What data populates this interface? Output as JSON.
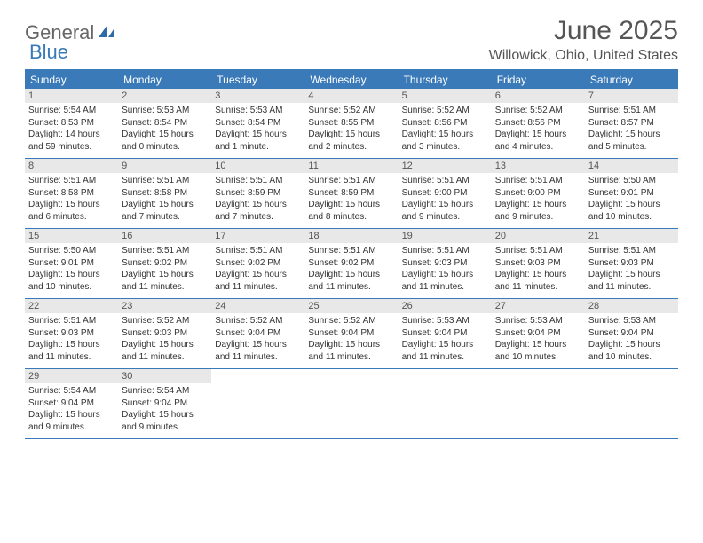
{
  "logo": {
    "text1": "General",
    "text2": "Blue"
  },
  "title": "June 2025",
  "location": "Willowick, Ohio, United States",
  "colors": {
    "accent": "#3a7ab8",
    "daynum_bg": "#e8e8e8",
    "text": "#333333"
  },
  "dayHeaders": [
    "Sunday",
    "Monday",
    "Tuesday",
    "Wednesday",
    "Thursday",
    "Friday",
    "Saturday"
  ],
  "weeks": [
    [
      {
        "n": "1",
        "sr": "Sunrise: 5:54 AM",
        "ss": "Sunset: 8:53 PM",
        "d1": "Daylight: 14 hours",
        "d2": "and 59 minutes."
      },
      {
        "n": "2",
        "sr": "Sunrise: 5:53 AM",
        "ss": "Sunset: 8:54 PM",
        "d1": "Daylight: 15 hours",
        "d2": "and 0 minutes."
      },
      {
        "n": "3",
        "sr": "Sunrise: 5:53 AM",
        "ss": "Sunset: 8:54 PM",
        "d1": "Daylight: 15 hours",
        "d2": "and 1 minute."
      },
      {
        "n": "4",
        "sr": "Sunrise: 5:52 AM",
        "ss": "Sunset: 8:55 PM",
        "d1": "Daylight: 15 hours",
        "d2": "and 2 minutes."
      },
      {
        "n": "5",
        "sr": "Sunrise: 5:52 AM",
        "ss": "Sunset: 8:56 PM",
        "d1": "Daylight: 15 hours",
        "d2": "and 3 minutes."
      },
      {
        "n": "6",
        "sr": "Sunrise: 5:52 AM",
        "ss": "Sunset: 8:56 PM",
        "d1": "Daylight: 15 hours",
        "d2": "and 4 minutes."
      },
      {
        "n": "7",
        "sr": "Sunrise: 5:51 AM",
        "ss": "Sunset: 8:57 PM",
        "d1": "Daylight: 15 hours",
        "d2": "and 5 minutes."
      }
    ],
    [
      {
        "n": "8",
        "sr": "Sunrise: 5:51 AM",
        "ss": "Sunset: 8:58 PM",
        "d1": "Daylight: 15 hours",
        "d2": "and 6 minutes."
      },
      {
        "n": "9",
        "sr": "Sunrise: 5:51 AM",
        "ss": "Sunset: 8:58 PM",
        "d1": "Daylight: 15 hours",
        "d2": "and 7 minutes."
      },
      {
        "n": "10",
        "sr": "Sunrise: 5:51 AM",
        "ss": "Sunset: 8:59 PM",
        "d1": "Daylight: 15 hours",
        "d2": "and 7 minutes."
      },
      {
        "n": "11",
        "sr": "Sunrise: 5:51 AM",
        "ss": "Sunset: 8:59 PM",
        "d1": "Daylight: 15 hours",
        "d2": "and 8 minutes."
      },
      {
        "n": "12",
        "sr": "Sunrise: 5:51 AM",
        "ss": "Sunset: 9:00 PM",
        "d1": "Daylight: 15 hours",
        "d2": "and 9 minutes."
      },
      {
        "n": "13",
        "sr": "Sunrise: 5:51 AM",
        "ss": "Sunset: 9:00 PM",
        "d1": "Daylight: 15 hours",
        "d2": "and 9 minutes."
      },
      {
        "n": "14",
        "sr": "Sunrise: 5:50 AM",
        "ss": "Sunset: 9:01 PM",
        "d1": "Daylight: 15 hours",
        "d2": "and 10 minutes."
      }
    ],
    [
      {
        "n": "15",
        "sr": "Sunrise: 5:50 AM",
        "ss": "Sunset: 9:01 PM",
        "d1": "Daylight: 15 hours",
        "d2": "and 10 minutes."
      },
      {
        "n": "16",
        "sr": "Sunrise: 5:51 AM",
        "ss": "Sunset: 9:02 PM",
        "d1": "Daylight: 15 hours",
        "d2": "and 11 minutes."
      },
      {
        "n": "17",
        "sr": "Sunrise: 5:51 AM",
        "ss": "Sunset: 9:02 PM",
        "d1": "Daylight: 15 hours",
        "d2": "and 11 minutes."
      },
      {
        "n": "18",
        "sr": "Sunrise: 5:51 AM",
        "ss": "Sunset: 9:02 PM",
        "d1": "Daylight: 15 hours",
        "d2": "and 11 minutes."
      },
      {
        "n": "19",
        "sr": "Sunrise: 5:51 AM",
        "ss": "Sunset: 9:03 PM",
        "d1": "Daylight: 15 hours",
        "d2": "and 11 minutes."
      },
      {
        "n": "20",
        "sr": "Sunrise: 5:51 AM",
        "ss": "Sunset: 9:03 PM",
        "d1": "Daylight: 15 hours",
        "d2": "and 11 minutes."
      },
      {
        "n": "21",
        "sr": "Sunrise: 5:51 AM",
        "ss": "Sunset: 9:03 PM",
        "d1": "Daylight: 15 hours",
        "d2": "and 11 minutes."
      }
    ],
    [
      {
        "n": "22",
        "sr": "Sunrise: 5:51 AM",
        "ss": "Sunset: 9:03 PM",
        "d1": "Daylight: 15 hours",
        "d2": "and 11 minutes."
      },
      {
        "n": "23",
        "sr": "Sunrise: 5:52 AM",
        "ss": "Sunset: 9:03 PM",
        "d1": "Daylight: 15 hours",
        "d2": "and 11 minutes."
      },
      {
        "n": "24",
        "sr": "Sunrise: 5:52 AM",
        "ss": "Sunset: 9:04 PM",
        "d1": "Daylight: 15 hours",
        "d2": "and 11 minutes."
      },
      {
        "n": "25",
        "sr": "Sunrise: 5:52 AM",
        "ss": "Sunset: 9:04 PM",
        "d1": "Daylight: 15 hours",
        "d2": "and 11 minutes."
      },
      {
        "n": "26",
        "sr": "Sunrise: 5:53 AM",
        "ss": "Sunset: 9:04 PM",
        "d1": "Daylight: 15 hours",
        "d2": "and 11 minutes."
      },
      {
        "n": "27",
        "sr": "Sunrise: 5:53 AM",
        "ss": "Sunset: 9:04 PM",
        "d1": "Daylight: 15 hours",
        "d2": "and 10 minutes."
      },
      {
        "n": "28",
        "sr": "Sunrise: 5:53 AM",
        "ss": "Sunset: 9:04 PM",
        "d1": "Daylight: 15 hours",
        "d2": "and 10 minutes."
      }
    ],
    [
      {
        "n": "29",
        "sr": "Sunrise: 5:54 AM",
        "ss": "Sunset: 9:04 PM",
        "d1": "Daylight: 15 hours",
        "d2": "and 9 minutes."
      },
      {
        "n": "30",
        "sr": "Sunrise: 5:54 AM",
        "ss": "Sunset: 9:04 PM",
        "d1": "Daylight: 15 hours",
        "d2": "and 9 minutes."
      },
      null,
      null,
      null,
      null,
      null
    ]
  ]
}
